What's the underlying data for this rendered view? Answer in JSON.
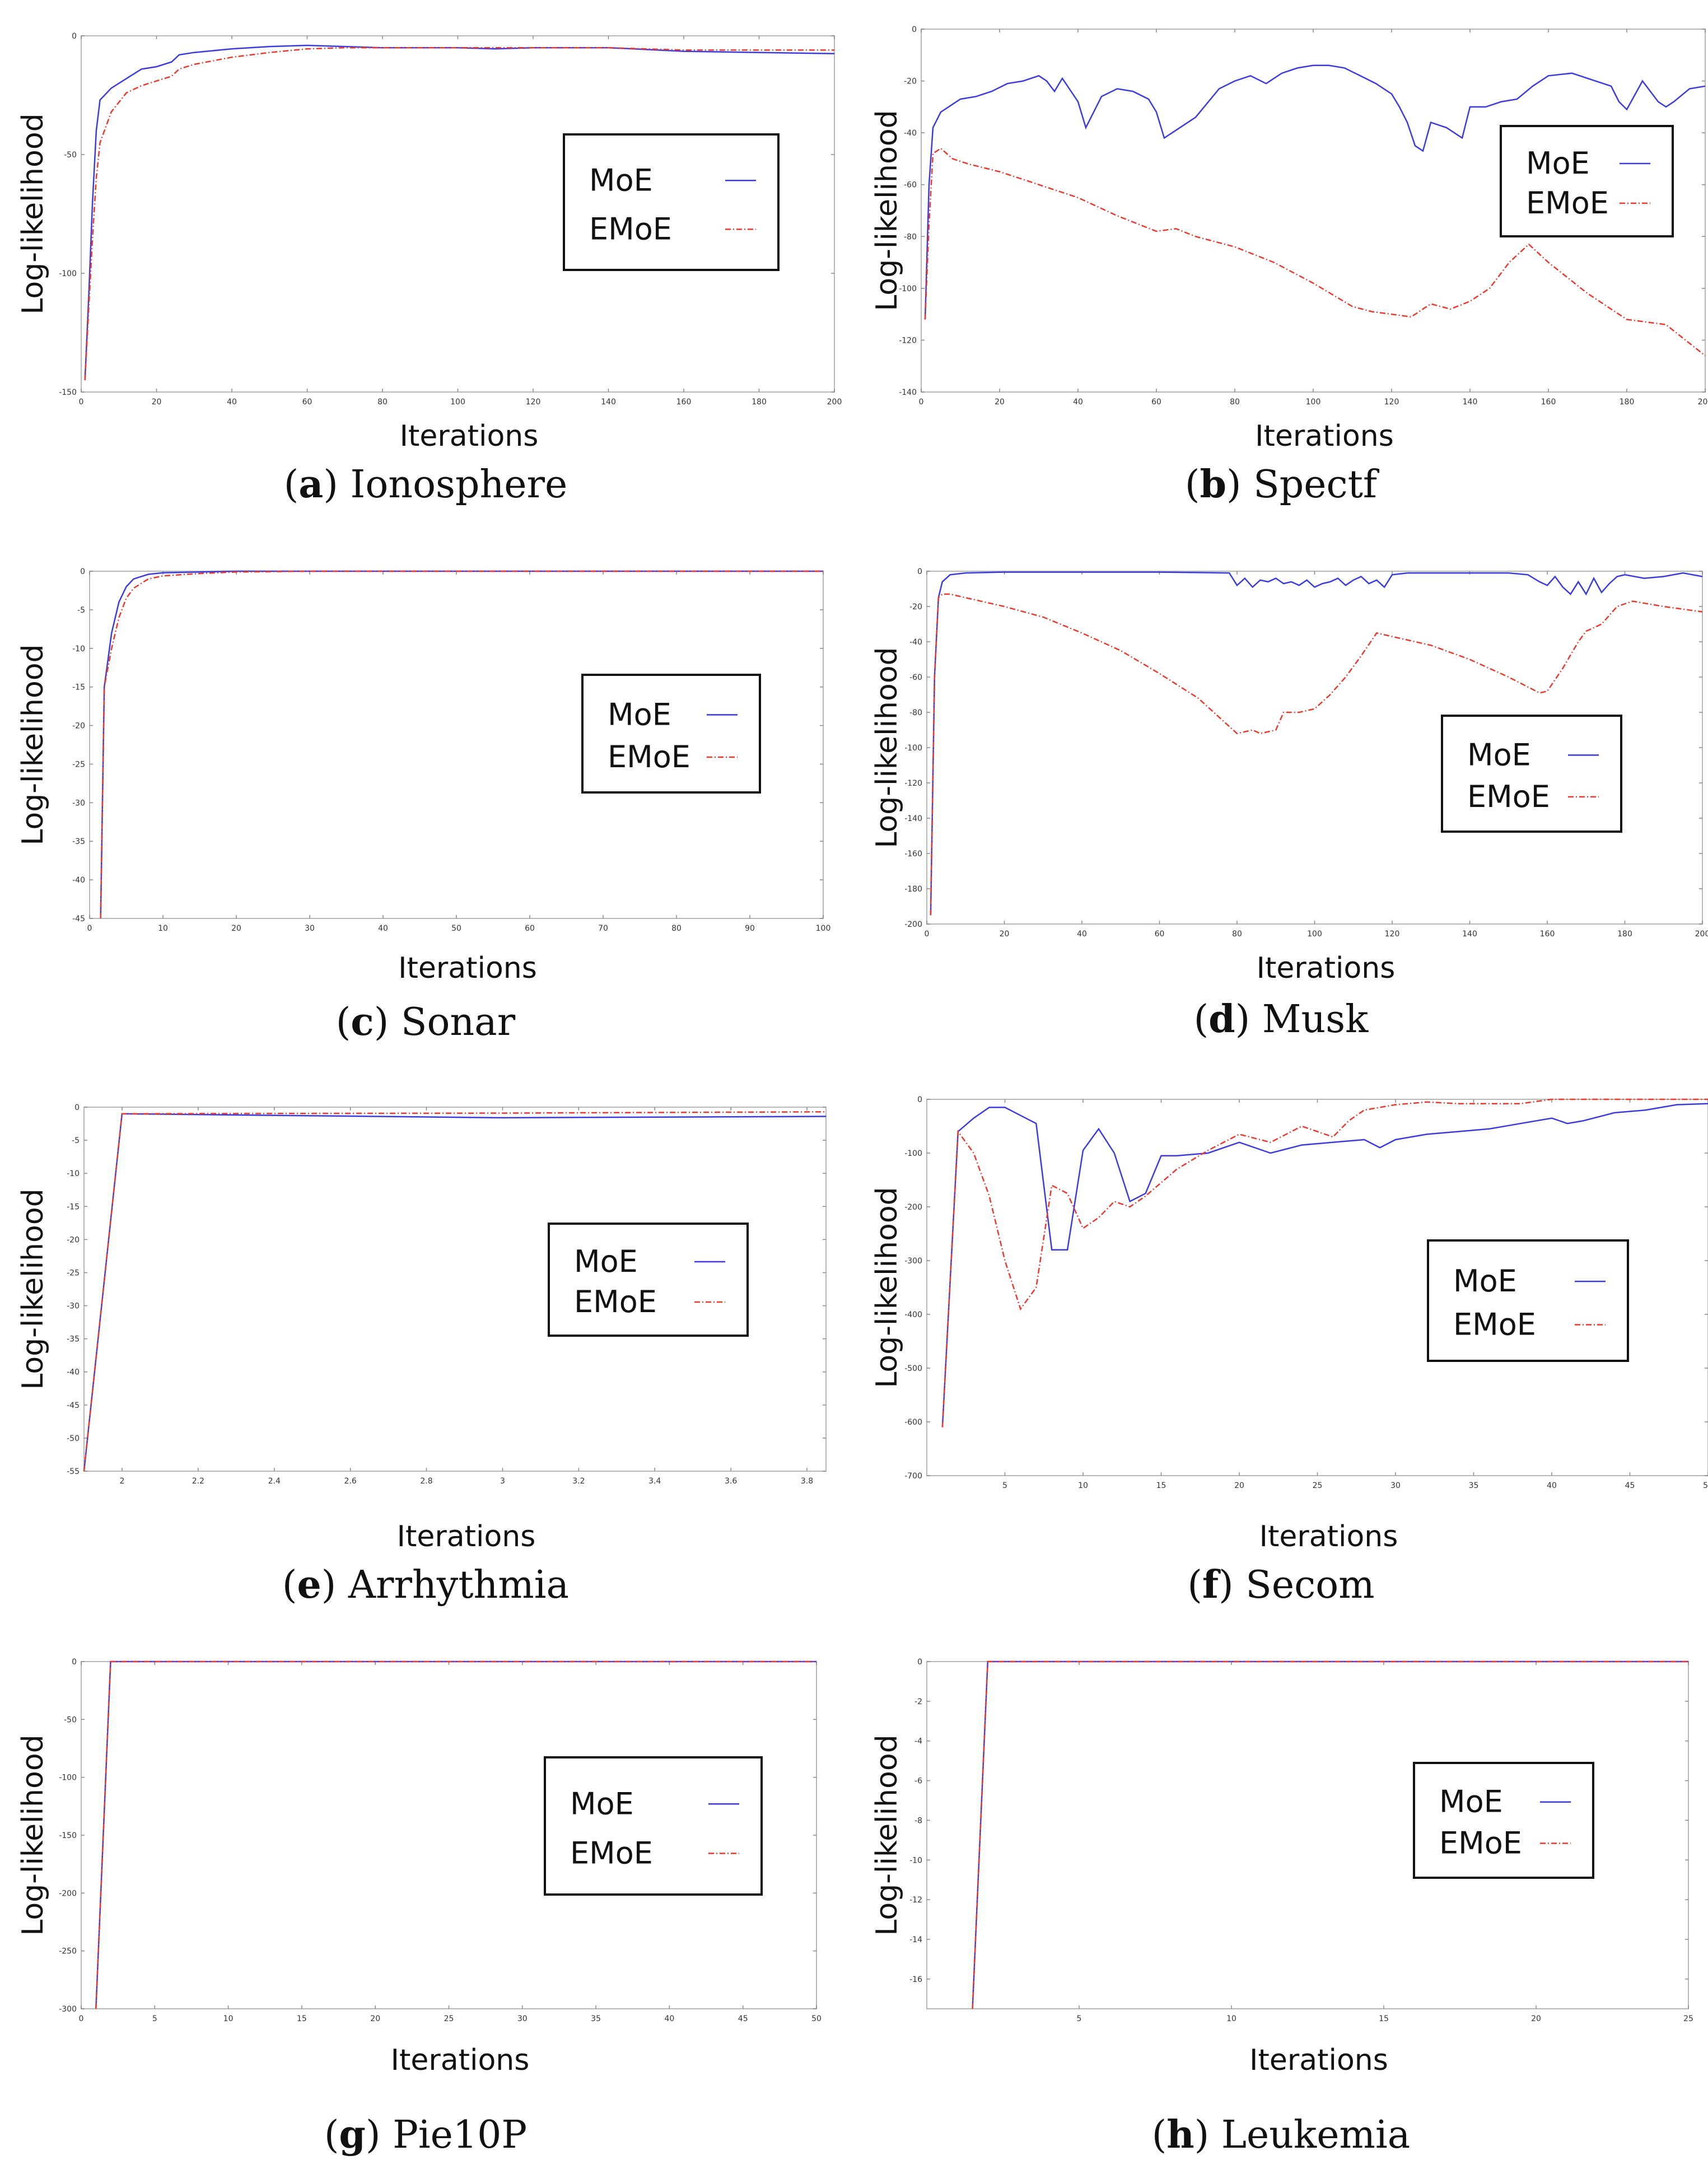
{
  "colors": {
    "moe": "#3a3ae0",
    "emoe": "#e8392e",
    "axis": "#b8b8b8",
    "grid": "#888888"
  },
  "chart_data": [
    {
      "id": "a",
      "caption_letter": "a",
      "caption_name": "Ionosphere",
      "type": "line",
      "xlabel": "Iterations",
      "ylabel": "Log-likelihood",
      "xlim": [
        0,
        200
      ],
      "ylim": [
        -150,
        0
      ],
      "xticks": [
        "0",
        "20",
        "40",
        "60",
        "80",
        "100",
        "120",
        "140",
        "160",
        "180",
        "200"
      ],
      "yticks": [
        "0",
        "-50",
        "-100",
        "-150"
      ],
      "legend": [
        "MoE",
        "EMoE"
      ],
      "series": [
        {
          "name": "MoE",
          "x": [
            1,
            2,
            3,
            4,
            5,
            8,
            12,
            16,
            20,
            24,
            26,
            30,
            40,
            50,
            60,
            70,
            80,
            100,
            110,
            120,
            140,
            160,
            180,
            200
          ],
          "y": [
            -145,
            -110,
            -70,
            -40,
            -27,
            -22,
            -18,
            -14,
            -13,
            -11,
            -8,
            -7,
            -5.5,
            -4.5,
            -4,
            -4.5,
            -5,
            -5,
            -5.5,
            -5,
            -5,
            -6.5,
            -7,
            -7.5
          ]
        },
        {
          "name": "EMoE",
          "x": [
            1,
            2,
            3,
            4,
            5,
            8,
            12,
            16,
            20,
            24,
            26,
            30,
            40,
            50,
            60,
            70,
            80,
            100,
            120,
            140,
            160,
            180,
            200
          ],
          "y": [
            -145,
            -115,
            -85,
            -60,
            -45,
            -32,
            -24,
            -21,
            -19,
            -17,
            -14,
            -12,
            -9,
            -7,
            -5.5,
            -5,
            -5,
            -5,
            -5,
            -5,
            -6,
            -6,
            -6
          ]
        }
      ]
    },
    {
      "id": "b",
      "caption_letter": "b",
      "caption_name": "Spectf",
      "type": "line",
      "xlabel": "Iterations",
      "ylabel": "Log-likelihood",
      "xlim": [
        0,
        200
      ],
      "ylim": [
        -140,
        0
      ],
      "xticks": [
        "0",
        "20",
        "40",
        "60",
        "80",
        "100",
        "120",
        "140",
        "160",
        "180",
        "200"
      ],
      "yticks": [
        "0",
        "-20",
        "-40",
        "-60",
        "-80",
        "-100",
        "-120",
        "-140"
      ],
      "legend": [
        "MoE",
        "EMoE"
      ],
      "series": [
        {
          "name": "MoE",
          "x": [
            1,
            2,
            3,
            5,
            8,
            10,
            14,
            18,
            22,
            26,
            28,
            30,
            32,
            34,
            36,
            40,
            42,
            46,
            50,
            54,
            58,
            60,
            62,
            66,
            70,
            76,
            80,
            84,
            88,
            92,
            96,
            100,
            104,
            108,
            112,
            116,
            120,
            122,
            124,
            126,
            128,
            130,
            134,
            138,
            140,
            144,
            148,
            152,
            156,
            160,
            166,
            172,
            176,
            178,
            180,
            184,
            186,
            188,
            190,
            192,
            196,
            200
          ],
          "y": [
            -112,
            -60,
            -38,
            -32,
            -29,
            -27,
            -26,
            -24,
            -21,
            -20,
            -19,
            -18,
            -20,
            -24,
            -19,
            -28,
            -38,
            -26,
            -23,
            -24,
            -27,
            -32,
            -42,
            -38,
            -34,
            -23,
            -20,
            -18,
            -21,
            -17,
            -15,
            -14,
            -14,
            -15,
            -18,
            -21,
            -25,
            -30,
            -36,
            -45,
            -47,
            -36,
            -38,
            -42,
            -30,
            -30,
            -28,
            -27,
            -22,
            -18,
            -17,
            -20,
            -22,
            -28,
            -31,
            -20,
            -24,
            -28,
            -30,
            -28,
            -23,
            -22
          ]
        },
        {
          "name": "EMoE",
          "x": [
            1,
            2,
            3,
            5,
            8,
            12,
            20,
            30,
            40,
            50,
            60,
            65,
            70,
            80,
            90,
            100,
            110,
            115,
            120,
            125,
            130,
            135,
            140,
            145,
            150,
            155,
            160,
            170,
            180,
            190,
            200
          ],
          "y": [
            -112,
            -75,
            -48,
            -46,
            -50,
            -52,
            -55,
            -60,
            -65,
            -72,
            -78,
            -77,
            -80,
            -84,
            -90,
            -98,
            -107,
            -109,
            -110,
            -111,
            -106,
            -108,
            -105,
            -100,
            -90,
            -83,
            -90,
            -102,
            -112,
            -114,
            -126
          ]
        }
      ]
    },
    {
      "id": "c",
      "caption_letter": "c",
      "caption_name": "Sonar",
      "type": "line",
      "xlabel": "Iterations",
      "ylabel": "Log-likelihood",
      "xlim": [
        0,
        100
      ],
      "ylim": [
        -45,
        0
      ],
      "xticks": [
        "0",
        "10",
        "20",
        "30",
        "40",
        "50",
        "60",
        "70",
        "80",
        "90",
        "100"
      ],
      "yticks": [
        "0",
        "-5",
        "-10",
        "-15",
        "-20",
        "-25",
        "-30",
        "-35",
        "-40",
        "-45"
      ],
      "legend": [
        "MoE",
        "EMoE"
      ],
      "series": [
        {
          "name": "MoE",
          "x": [
            1.5,
            2,
            3,
            4,
            5,
            6,
            8,
            10,
            15,
            20,
            30,
            50,
            100
          ],
          "y": [
            -45,
            -15,
            -8,
            -4,
            -2,
            -1,
            -0.4,
            -0.2,
            -0.1,
            0,
            0,
            0,
            0
          ]
        },
        {
          "name": "EMoE",
          "x": [
            1.5,
            2,
            3,
            4,
            5,
            6,
            8,
            10,
            15,
            20,
            30,
            50,
            100
          ],
          "y": [
            -45,
            -15,
            -10,
            -6,
            -3.5,
            -2.2,
            -1,
            -0.6,
            -0.3,
            -0.1,
            0,
            0,
            0
          ]
        }
      ]
    },
    {
      "id": "d",
      "caption_letter": "d",
      "caption_name": "Musk",
      "type": "line",
      "xlabel": "Iterations",
      "ylabel": "Log-likelihood",
      "xlim": [
        0,
        200
      ],
      "ylim": [
        -200,
        0
      ],
      "xticks": [
        "0",
        "20",
        "40",
        "60",
        "80",
        "100",
        "120",
        "140",
        "160",
        "180",
        "200"
      ],
      "yticks": [
        "0",
        "-20",
        "-40",
        "-60",
        "-80",
        "-100",
        "-120",
        "-140",
        "-160",
        "-180",
        "-200"
      ],
      "legend": [
        "MoE",
        "EMoE"
      ],
      "series": [
        {
          "name": "MoE",
          "x": [
            1,
            2,
            3,
            4,
            6,
            10,
            20,
            40,
            60,
            78,
            80,
            82,
            84,
            86,
            88,
            90,
            92,
            94,
            96,
            98,
            100,
            102,
            104,
            106,
            108,
            110,
            112,
            114,
            116,
            118,
            120,
            124,
            128,
            132,
            136,
            140,
            150,
            155,
            158,
            160,
            162,
            164,
            166,
            168,
            170,
            172,
            174,
            176,
            178,
            180,
            185,
            190,
            195,
            200
          ],
          "y": [
            -195,
            -60,
            -15,
            -6,
            -2,
            -1,
            -0.5,
            -0.5,
            -0.5,
            -1,
            -8,
            -4,
            -9,
            -5,
            -6,
            -4,
            -7,
            -6,
            -8,
            -5,
            -9,
            -7,
            -6,
            -4,
            -8,
            -5,
            -3,
            -7,
            -5,
            -9,
            -2,
            -1,
            -1,
            -1,
            -1,
            -1,
            -1,
            -2,
            -6,
            -8,
            -3,
            -9,
            -13,
            -6,
            -13,
            -4,
            -12,
            -7,
            -3,
            -2,
            -4,
            -3,
            -1,
            -3
          ]
        },
        {
          "name": "EMoE",
          "x": [
            1,
            2,
            3,
            4,
            6,
            10,
            20,
            30,
            40,
            50,
            60,
            70,
            78,
            80,
            84,
            86,
            90,
            92,
            96,
            100,
            104,
            108,
            112,
            116,
            120,
            130,
            140,
            150,
            158,
            160,
            164,
            168,
            170,
            174,
            178,
            182,
            190,
            200
          ],
          "y": [
            -195,
            -60,
            -15,
            -13,
            -13,
            -15,
            -20,
            -26,
            -35,
            -45,
            -58,
            -72,
            -88,
            -92,
            -90,
            -92,
            -90,
            -80,
            -80,
            -78,
            -70,
            -60,
            -48,
            -35,
            -37,
            -42,
            -50,
            -60,
            -69,
            -68,
            -55,
            -40,
            -34,
            -30,
            -20,
            -17,
            -20,
            -23
          ]
        }
      ]
    },
    {
      "id": "e",
      "caption_letter": "e",
      "caption_name": "Arrhythmia",
      "type": "line",
      "xlabel": "Iterations",
      "ylabel": "Log-likelihood",
      "xlim": [
        1.9,
        3.85
      ],
      "ylim": [
        -55,
        0
      ],
      "xticks": [
        "2",
        "2.2",
        "2.4",
        "2.6",
        "2.8",
        "3",
        "3.2",
        "3.4",
        "3.6",
        "3.8"
      ],
      "yticks": [
        "0",
        "-5",
        "-10",
        "-15",
        "-20",
        "-25",
        "-30",
        "-35",
        "-40",
        "-45",
        "-50",
        "-55"
      ],
      "legend": [
        "MoE",
        "EMoE"
      ],
      "series": [
        {
          "name": "MoE",
          "x": [
            1.9,
            2.0,
            3.0,
            3.85
          ],
          "y": [
            -55,
            -1,
            -1.6,
            -1.4
          ]
        },
        {
          "name": "EMoE",
          "x": [
            1.9,
            2.0,
            3.0,
            3.85
          ],
          "y": [
            -55,
            -1,
            -0.9,
            -0.7
          ]
        }
      ]
    },
    {
      "id": "f",
      "caption_letter": "f",
      "caption_name": "Secom",
      "type": "line",
      "xlabel": "Iterations",
      "ylabel": "Log-likelihood",
      "xlim": [
        0,
        50
      ],
      "ylim": [
        -700,
        0
      ],
      "xticks": [
        "5",
        "10",
        "15",
        "20",
        "25",
        "30",
        "35",
        "40",
        "45",
        "50"
      ],
      "yticks": [
        "0",
        "-100",
        "-200",
        "-300",
        "-400",
        "-500",
        "-600",
        "-700"
      ],
      "legend": [
        "MoE",
        "EMoE"
      ],
      "series": [
        {
          "name": "MoE",
          "x": [
            1,
            2,
            3,
            4,
            5,
            6,
            7,
            8,
            9,
            10,
            11,
            12,
            13,
            14,
            15,
            16,
            18,
            20,
            22,
            24,
            26,
            28,
            29,
            30,
            32,
            34,
            36,
            38,
            40,
            41,
            42,
            44,
            46,
            48,
            50
          ],
          "y": [
            -610,
            -60,
            -35,
            -15,
            -15,
            -30,
            -45,
            -280,
            -280,
            -95,
            -55,
            -100,
            -190,
            -175,
            -105,
            -105,
            -100,
            -80,
            -100,
            -85,
            -80,
            -75,
            -90,
            -75,
            -65,
            -60,
            -55,
            -45,
            -35,
            -45,
            -40,
            -25,
            -20,
            -10,
            -8
          ]
        },
        {
          "name": "EMoE",
          "x": [
            1,
            2,
            3,
            4,
            5,
            6,
            7,
            8,
            9,
            10,
            11,
            12,
            13,
            14,
            15,
            16,
            18,
            20,
            22,
            24,
            25,
            26,
            27,
            28,
            30,
            32,
            34,
            36,
            38,
            40,
            45,
            50
          ],
          "y": [
            -610,
            -60,
            -100,
            -180,
            -300,
            -390,
            -350,
            -160,
            -175,
            -240,
            -220,
            -190,
            -200,
            -180,
            -155,
            -130,
            -95,
            -65,
            -80,
            -50,
            -60,
            -70,
            -40,
            -20,
            -10,
            -5,
            -8,
            -8,
            -8,
            0,
            0,
            0
          ]
        }
      ]
    },
    {
      "id": "g",
      "caption_letter": "g",
      "caption_name": "Pie10P",
      "type": "line",
      "xlabel": "Iterations",
      "ylabel": "Log-likelihood",
      "xlim": [
        0,
        50
      ],
      "ylim": [
        -300,
        0
      ],
      "xticks": [
        "0",
        "5",
        "10",
        "15",
        "20",
        "25",
        "30",
        "35",
        "40",
        "45",
        "50"
      ],
      "yticks": [
        "0",
        "-50",
        "-100",
        "-150",
        "-200",
        "-250",
        "-300"
      ],
      "legend": [
        "MoE",
        "EMoE"
      ],
      "series": [
        {
          "name": "MoE",
          "x": [
            1,
            2,
            50
          ],
          "y": [
            -300,
            0,
            0
          ]
        },
        {
          "name": "EMoE",
          "x": [
            1,
            2,
            50
          ],
          "y": [
            -300,
            0,
            0
          ]
        }
      ]
    },
    {
      "id": "h",
      "caption_letter": "h",
      "caption_name": "Leukemia",
      "type": "line",
      "xlabel": "Iterations",
      "ylabel": "Log-likelihood",
      "xlim": [
        0,
        25
      ],
      "ylim": [
        -17.5,
        0
      ],
      "xticks": [
        "5",
        "10",
        "15",
        "20",
        "25"
      ],
      "yticks": [
        "0",
        "-2",
        "-4",
        "-6",
        "-8",
        "-10",
        "-12",
        "-14",
        "-16"
      ],
      "legend": [
        "MoE",
        "EMoE"
      ],
      "series": [
        {
          "name": "MoE",
          "x": [
            1.5,
            2,
            25
          ],
          "y": [
            -17.5,
            0,
            0
          ]
        },
        {
          "name": "EMoE",
          "x": [
            1.5,
            2,
            25
          ],
          "y": [
            -17.5,
            0,
            0
          ]
        }
      ]
    }
  ]
}
